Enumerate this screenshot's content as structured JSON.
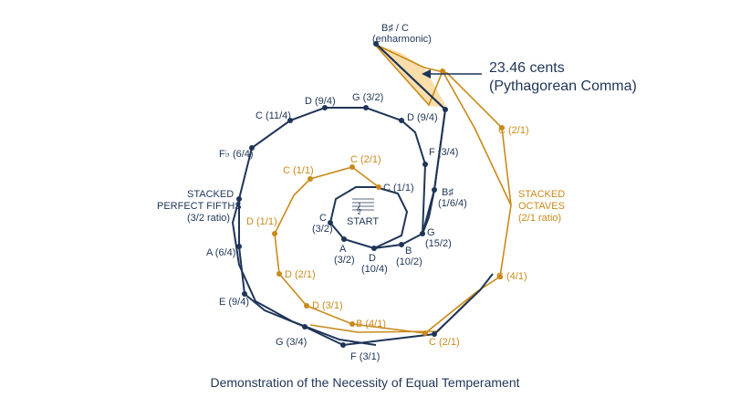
{
  "caption": "Demonstration of the Necessity of Equal Temperament",
  "start": {
    "label": "START",
    "clef": "𝄞"
  },
  "comma": {
    "value": "23.46 cents",
    "name": "(Pythagorean Comma)"
  },
  "top": {
    "note": "B♯ / C",
    "sub": "(enharmonic)"
  },
  "fifths_side": [
    "STACKED",
    "PERFECT FIFTHS",
    "(3/2 ratio)"
  ],
  "octaves_side": [
    "STACKED",
    "OCTAVES",
    "(2/1 ratio)"
  ],
  "fifths_labels": [
    [
      "C",
      "(3/2)"
    ],
    [
      "A",
      "(3/2)"
    ],
    [
      "D",
      "(10/4)"
    ],
    [
      "B",
      "(10/2)"
    ],
    [
      "G",
      "(15/2)"
    ],
    [
      "B♯",
      "(1/6/4)"
    ],
    [
      "F (3/4)"
    ],
    [
      "D (9/4)"
    ],
    [
      "G (3/2)"
    ],
    [
      "D (9/4)"
    ],
    [
      "C (11/4)"
    ],
    [
      "F♭ (6/4)"
    ],
    [
      "A (6/4)"
    ],
    [
      "E (9/4)"
    ],
    [
      "G (3/4)"
    ],
    [
      "F (3/1)"
    ]
  ],
  "octave_labels": [
    "C (1/1)",
    "C (2/1)",
    "C (1/1)",
    "D (1/1)",
    "D (2/1)",
    "D (3/1)",
    "B (4/1)",
    "C (2/1)",
    "C (4/1)",
    "C (2/1)"
  ],
  "colors": {
    "navy": "#1f3557",
    "gold": "#c98a1b",
    "highlight": "#f6c977"
  }
}
